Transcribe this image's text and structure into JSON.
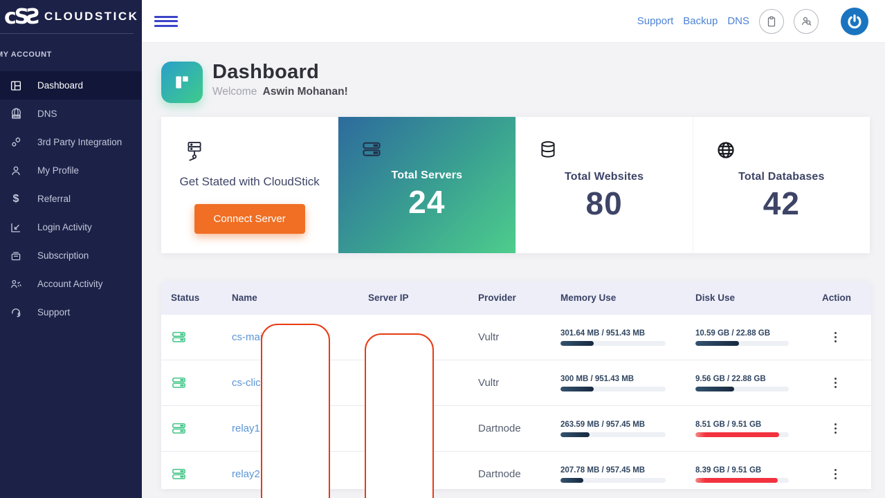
{
  "brand": {
    "mark": "cSƧ",
    "name": "CLOUDSTICK"
  },
  "topbar": {
    "links": [
      {
        "label": "Support"
      },
      {
        "label": "Backup"
      },
      {
        "label": "DNS"
      }
    ],
    "icons": [
      "menu-icon",
      "clipboard-icon",
      "user-search-icon",
      "power-icon"
    ]
  },
  "sidebar": {
    "section_label": "MY ACCOUNT",
    "items": [
      {
        "label": "Dashboard",
        "icon": "dashboard-icon",
        "active": true
      },
      {
        "label": "DNS",
        "icon": "dns-icon",
        "active": false
      },
      {
        "label": "3rd Party Integration",
        "icon": "integration-icon",
        "active": false
      },
      {
        "label": "My Profile",
        "icon": "profile-icon",
        "active": false
      },
      {
        "label": "Referral",
        "icon": "referral-icon",
        "active": false,
        "glyph": "$"
      },
      {
        "label": "Login Activity",
        "icon": "login-activity-icon",
        "active": false
      },
      {
        "label": "Subscription",
        "icon": "subscription-icon",
        "active": false
      },
      {
        "label": "Account Activity",
        "icon": "account-activity-icon",
        "active": false
      },
      {
        "label": "Support",
        "icon": "support-icon",
        "active": false
      }
    ]
  },
  "header": {
    "title": "Dashboard",
    "welcome_label": "Welcome",
    "user_name": "Aswin Mohanan!"
  },
  "stats": {
    "get_started": {
      "text": "Get Stated with CloudStick",
      "button_label": "Connect Server",
      "icon": "network-server-icon"
    },
    "cards": [
      {
        "label": "Total Servers",
        "value": "24",
        "icon": "server-stack-icon",
        "highlight": true
      },
      {
        "label": "Total Websites",
        "value": "80",
        "icon": "database-icon",
        "highlight": false
      },
      {
        "label": "Total Databases",
        "value": "42",
        "icon": "globe-icon",
        "highlight": false
      }
    ]
  },
  "table": {
    "columns": [
      "Status",
      "Name",
      "Server IP",
      "Provider",
      "Memory Use",
      "Disk Use",
      "Action"
    ],
    "rows": [
      {
        "status_icon": "server-online-icon",
        "name": "cs-mai",
        "provider": "Vultr",
        "memory": "301.64 MB / 951.43 MB",
        "memory_pct": 31.7,
        "disk": "10.59 GB / 22.88 GB",
        "disk_pct": 46.3,
        "disk_alert": false
      },
      {
        "status_icon": "server-online-icon",
        "name": "cs-click",
        "provider": "Vultr",
        "memory": "300 MB / 951.43 MB",
        "memory_pct": 31.5,
        "disk": "9.56 GB / 22.88 GB",
        "disk_pct": 41.8,
        "disk_alert": false
      },
      {
        "status_icon": "server-online-icon",
        "name": "relay1.",
        "provider": "Dartnode",
        "memory": "263.59 MB / 957.45 MB",
        "memory_pct": 27.5,
        "disk": "8.51 GB / 9.51 GB",
        "disk_pct": 89.5,
        "disk_alert": true
      },
      {
        "status_icon": "server-online-icon",
        "name": "relay2.",
        "provider": "Dartnode",
        "memory": "207.78 MB / 957.45 MB",
        "memory_pct": 21.7,
        "disk": "8.39 GB / 9.51 GB",
        "disk_pct": 88.2,
        "disk_alert": true
      }
    ]
  },
  "annotations": {
    "redaction_border_color": "#e73b12",
    "count": 2
  },
  "colors": {
    "sidebar_bg": "#1c2147",
    "sidebar_active_bg": "#121639",
    "accent_blue": "#4c82d4",
    "hamburger_blue": "#3b44c8",
    "orange_button": "#f06f24",
    "power_button": "#1b74c0",
    "stat_navy": "#3d4466",
    "gradient_card_start": "#2d6b9d",
    "gradient_card_end": "#4ecd8c",
    "bar_navy": "#17293f",
    "bar_red": "#f2323f",
    "table_header_bg": "#edeef7"
  }
}
